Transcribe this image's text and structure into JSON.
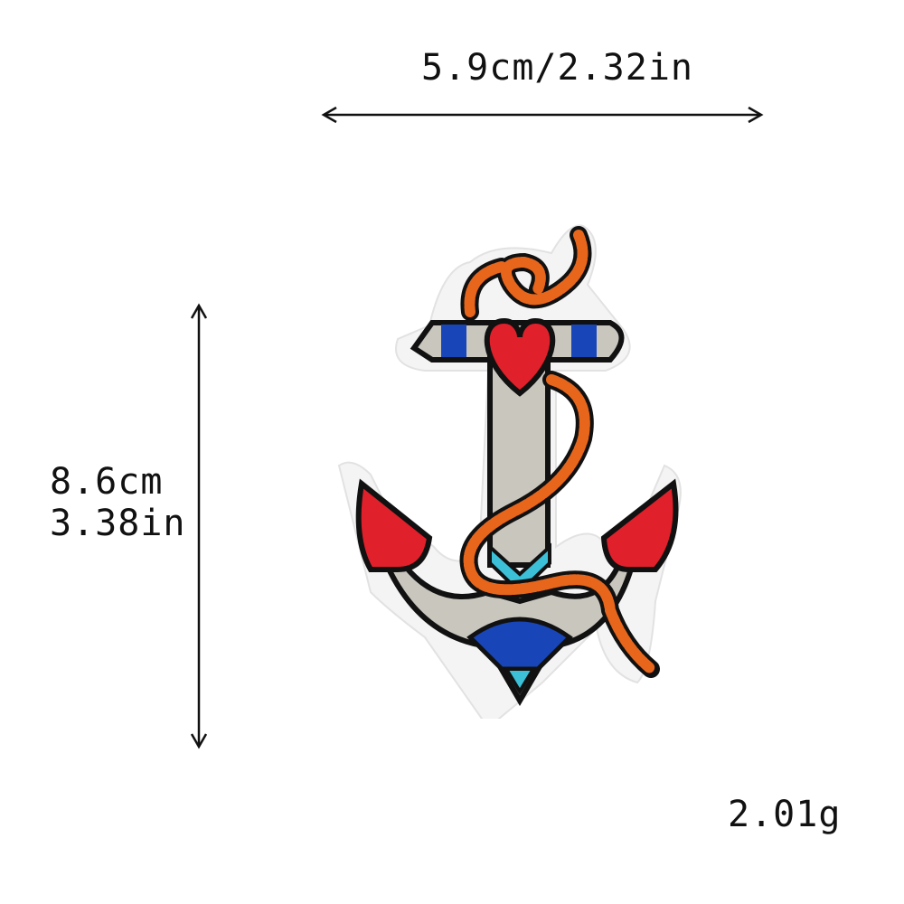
{
  "dimensions": {
    "width_text": "5.9cm/2.32in",
    "height_cm_text": "8.6cm",
    "height_in_text": "3.38in",
    "weight_text": "2.01g"
  },
  "product": {
    "subject": "embroidered anchor patch with heart and rope",
    "colors": {
      "border": "#f4f4f4",
      "outline": "#111111",
      "shank": "#c9c6be",
      "heart": "#e0202a",
      "rope": "#e8661c",
      "blue": "#1846b8",
      "teal": "#3cc0d8"
    }
  }
}
